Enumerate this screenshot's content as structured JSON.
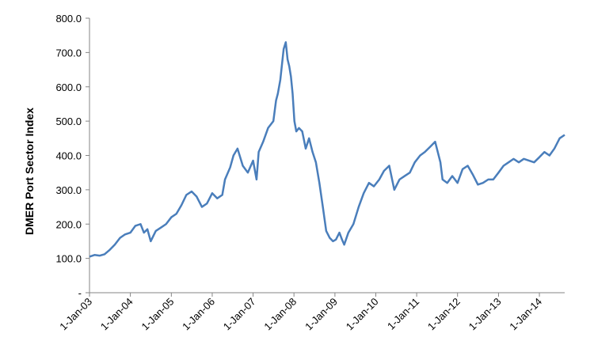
{
  "chart_data": {
    "type": "line",
    "title": "",
    "xlabel": "",
    "ylabel": "DMER Port Sector Index",
    "ylim": [
      0,
      800
    ],
    "xlim": [
      "2003-01-01",
      "2014-08-15"
    ],
    "grid": false,
    "legend": "none",
    "line_color": "#4a7ebb",
    "y_tick_labels": [
      "-",
      "100.0",
      "200.0",
      "300.0",
      "400.0",
      "500.0",
      "600.0",
      "700.0",
      "800.0"
    ],
    "x_tick_labels": [
      "1-Jan-03",
      "1-Jan-04",
      "1-Jan-05",
      "1-Jan-06",
      "1-Jan-07",
      "1-Jan-08",
      "1-Jan-09",
      "1-Jan-10",
      "1-Jan-11",
      "1-Jan-12",
      "1-Jan-13",
      "1-Jan-14"
    ],
    "series": [
      {
        "x": [
          "2003-01-01",
          "2003-02-15",
          "2003-04-01",
          "2003-05-15",
          "2003-07-01",
          "2003-08-15",
          "2003-10-01",
          "2003-11-15",
          "2004-01-01",
          "2004-02-15",
          "2004-04-01",
          "2004-05-01",
          "2004-06-01",
          "2004-07-01",
          "2004-08-15",
          "2004-10-01",
          "2004-11-15",
          "2005-01-01",
          "2005-02-15",
          "2005-04-01",
          "2005-05-15",
          "2005-07-01",
          "2005-08-15",
          "2005-10-01",
          "2005-11-15",
          "2006-01-01",
          "2006-02-15",
          "2006-04-01",
          "2006-04-25",
          "2006-06-10",
          "2006-07-10",
          "2006-08-15",
          "2006-10-01",
          "2006-11-15",
          "2007-01-01",
          "2007-02-01",
          "2007-02-20",
          "2007-04-01",
          "2007-05-15",
          "2007-07-01",
          "2007-07-25",
          "2007-08-10",
          "2007-09-01",
          "2007-10-01",
          "2007-10-20",
          "2007-11-05",
          "2007-11-20",
          "2007-12-05",
          "2007-12-20",
          "2008-01-05",
          "2008-01-22",
          "2008-02-15",
          "2008-03-15",
          "2008-04-15",
          "2008-05-15",
          "2008-06-15",
          "2008-07-15",
          "2008-08-15",
          "2008-09-15",
          "2008-10-15",
          "2008-11-15",
          "2008-12-15",
          "2009-01-10",
          "2009-02-10",
          "2009-03-05",
          "2009-03-25",
          "2009-05-01",
          "2009-06-15",
          "2009-08-01",
          "2009-09-15",
          "2009-11-01",
          "2009-12-15",
          "2010-02-01",
          "2010-03-15",
          "2010-05-01",
          "2010-06-15",
          "2010-08-01",
          "2010-09-15",
          "2010-11-01",
          "2010-12-15",
          "2011-02-01",
          "2011-03-15",
          "2011-05-01",
          "2011-06-15",
          "2011-08-01",
          "2011-08-20",
          "2011-10-01",
          "2011-11-15",
          "2012-01-01",
          "2012-02-15",
          "2012-04-01",
          "2012-05-15",
          "2012-07-01",
          "2012-08-15",
          "2012-10-01",
          "2012-11-15",
          "2013-01-01",
          "2013-02-15",
          "2013-04-01",
          "2013-05-15",
          "2013-07-01",
          "2013-08-15",
          "2013-10-01",
          "2013-11-15",
          "2014-01-01",
          "2014-02-15",
          "2014-04-01",
          "2014-05-15",
          "2014-07-01",
          "2014-08-15"
        ],
        "y": [
          105,
          110,
          108,
          112,
          125,
          140,
          160,
          170,
          175,
          195,
          200,
          175,
          185,
          150,
          180,
          190,
          200,
          220,
          230,
          255,
          285,
          295,
          280,
          250,
          260,
          290,
          275,
          285,
          330,
          365,
          400,
          420,
          370,
          350,
          385,
          330,
          410,
          440,
          480,
          500,
          560,
          580,
          620,
          710,
          730,
          680,
          660,
          630,
          580,
          500,
          470,
          480,
          470,
          420,
          450,
          410,
          380,
          320,
          250,
          180,
          160,
          150,
          155,
          175,
          155,
          140,
          175,
          200,
          250,
          290,
          320,
          310,
          330,
          355,
          370,
          300,
          330,
          340,
          350,
          380,
          400,
          410,
          425,
          440,
          380,
          330,
          320,
          340,
          320,
          360,
          370,
          345,
          315,
          320,
          330,
          330,
          350,
          370,
          380,
          390,
          380,
          390,
          385,
          380,
          395,
          410,
          400,
          420,
          450,
          460
        ]
      }
    ]
  }
}
